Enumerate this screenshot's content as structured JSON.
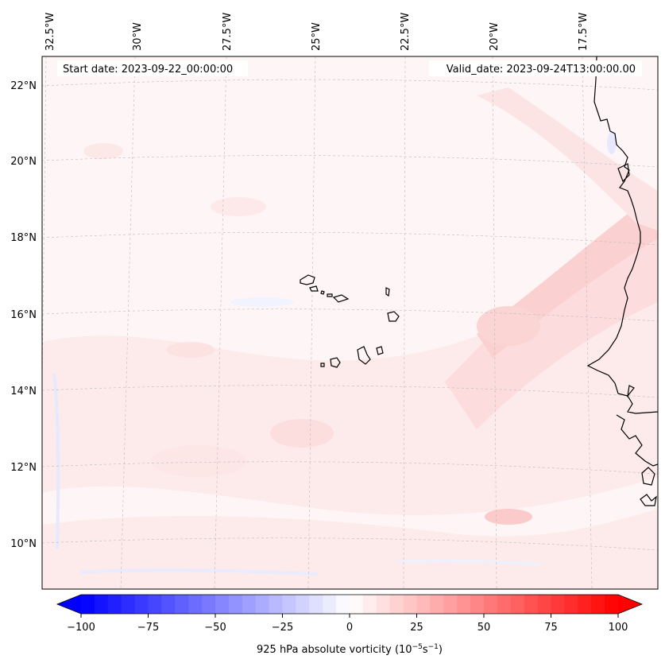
{
  "map": {
    "start_date": "Start date: 2023-09-22_00:00:00",
    "valid_date": "Valid_date: 2023-09-24T13:00:00.00",
    "lon_labels": [
      "32.5°W",
      "30°W",
      "27.5°W",
      "25°W",
      "22.5°W",
      "20°W",
      "17.5°W"
    ],
    "lat_labels": [
      "22°N",
      "20°N",
      "18°N",
      "16°N",
      "14°N",
      "12°N",
      "10°N"
    ]
  },
  "colorbar": {
    "ticks": [
      "−100",
      "−75",
      "−50",
      "−25",
      "0",
      "25",
      "50",
      "75",
      "100"
    ],
    "label": "925 hPa absolute vorticity (10",
    "label_exp1": "−5",
    "label_mid": "s",
    "label_exp2": "−1",
    "label_end": ")",
    "min": -100,
    "max": 100,
    "low_color": "#0000ff",
    "mid_color": "#ffffff",
    "high_color": "#ff0000"
  },
  "colors": {
    "coastline": "#000000",
    "gridline": "#bbbbbb",
    "field_pink": "#fde7e7",
    "field_pink_strong": "#fbd2d2",
    "field_blue": "#eef0fe"
  }
}
